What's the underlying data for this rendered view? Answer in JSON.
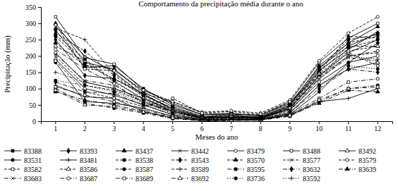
{
  "chart_data": {
    "type": "line",
    "title": "Comportamento da precipitação média durante o ano",
    "x_label": "Meses do ano",
    "y_label": "Precipitação (mm)",
    "categories": [
      "1",
      "2",
      "3",
      "4",
      "5",
      "6",
      "7",
      "8",
      "9",
      "10",
      "11",
      "12"
    ],
    "ylim": [
      0,
      350
    ],
    "yticks": [
      0,
      50,
      100,
      150,
      200,
      250,
      300,
      350
    ],
    "grid": false,
    "legend": "bottom",
    "series": [
      {
        "name": "83388",
        "color": "#000000",
        "marker": "square",
        "line_style": "solid",
        "values": [
          280,
          165,
          170,
          100,
          50,
          20,
          25,
          15,
          55,
          165,
          230,
          270
        ]
      },
      {
        "name": "83393",
        "color": "#000000",
        "marker": "diamond",
        "line_style": "solid",
        "values": [
          250,
          140,
          130,
          85,
          35,
          10,
          12,
          8,
          40,
          140,
          210,
          250
        ]
      },
      {
        "name": "83437",
        "color": "#000000",
        "marker": "triangle",
        "line_style": "solid",
        "values": [
          300,
          180,
          160,
          90,
          45,
          15,
          20,
          12,
          50,
          170,
          240,
          290
        ]
      },
      {
        "name": "83442",
        "color": "#000000",
        "marker": "x",
        "line_style": "solid",
        "values": [
          290,
          200,
          150,
          80,
          40,
          12,
          15,
          10,
          45,
          155,
          220,
          275
        ]
      },
      {
        "name": "83479",
        "color": "#000000",
        "marker": "open-circle",
        "line_style": "solid",
        "values": [
          210,
          120,
          100,
          70,
          30,
          8,
          10,
          8,
          35,
          120,
          180,
          200
        ]
      },
      {
        "name": "83488",
        "color": "#000000",
        "marker": "open-square",
        "line_style": "solid",
        "values": [
          320,
          195,
          175,
          95,
          55,
          20,
          22,
          18,
          60,
          180,
          255,
          300
        ]
      },
      {
        "name": "83492",
        "color": "#000000",
        "marker": "open-triangle",
        "line_style": "solid",
        "values": [
          190,
          100,
          80,
          50,
          20,
          5,
          5,
          5,
          25,
          110,
          160,
          180
        ]
      },
      {
        "name": "83531",
        "color": "#000000",
        "marker": "circle",
        "line_style": "solid",
        "values": [
          180,
          60,
          55,
          40,
          15,
          5,
          3,
          4,
          20,
          90,
          180,
          240
        ]
      },
      {
        "name": "83481",
        "color": "#000000",
        "marker": "plus",
        "line_style": "solid",
        "values": [
          110,
          75,
          70,
          30,
          10,
          2,
          3,
          5,
          20,
          60,
          70,
          100
        ]
      },
      {
        "name": "83538",
        "color": "#000000",
        "marker": "square",
        "line_style": "dashed",
        "values": [
          260,
          175,
          130,
          80,
          40,
          15,
          18,
          12,
          50,
          160,
          250,
          265
        ]
      },
      {
        "name": "83543",
        "color": "#000000",
        "marker": "diamond",
        "line_style": "dashed",
        "values": [
          270,
          215,
          140,
          75,
          30,
          10,
          12,
          10,
          40,
          150,
          260,
          255
        ]
      },
      {
        "name": "83570",
        "color": "#000000",
        "marker": "triangle",
        "line_style": "dashed",
        "values": [
          240,
          170,
          160,
          85,
          60,
          25,
          30,
          20,
          55,
          150,
          230,
          230
        ]
      },
      {
        "name": "83577",
        "color": "#000000",
        "marker": "x",
        "line_style": "dashed",
        "values": [
          200,
          110,
          95,
          60,
          25,
          8,
          8,
          6,
          30,
          130,
          200,
          210
        ]
      },
      {
        "name": "83579",
        "color": "#000000",
        "marker": "open-circle",
        "line_style": "dashed",
        "values": [
          295,
          160,
          155,
          95,
          60,
          28,
          32,
          25,
          65,
          185,
          270,
          320
        ]
      },
      {
        "name": "83582",
        "color": "#000000",
        "marker": "open-square",
        "line_style": "dashed",
        "values": [
          185,
          90,
          70,
          45,
          70,
          25,
          20,
          22,
          60,
          140,
          210,
          170
        ]
      },
      {
        "name": "83586",
        "color": "#000000",
        "marker": "open-triangle",
        "line_style": "dashed",
        "values": [
          230,
          185,
          120,
          70,
          35,
          12,
          15,
          10,
          45,
          145,
          215,
          230
        ]
      },
      {
        "name": "83587",
        "color": "#000000",
        "marker": "circle",
        "line_style": "dashed",
        "values": [
          265,
          190,
          125,
          65,
          30,
          10,
          12,
          10,
          42,
          135,
          225,
          250
        ]
      },
      {
        "name": "83589",
        "color": "#000000",
        "marker": "plus",
        "line_style": "dashed",
        "values": [
          285,
          250,
          145,
          80,
          35,
          12,
          15,
          12,
          48,
          160,
          240,
          260
        ]
      },
      {
        "name": "83595",
        "color": "#000000",
        "marker": "square",
        "line_style": "dash-dot",
        "values": [
          100,
          55,
          40,
          25,
          8,
          1,
          2,
          3,
          15,
          60,
          100,
          110
        ]
      },
      {
        "name": "83632",
        "color": "#000000",
        "marker": "diamond",
        "line_style": "dash-dot",
        "values": [
          120,
          90,
          85,
          50,
          20,
          5,
          6,
          5,
          25,
          100,
          160,
          150
        ]
      },
      {
        "name": "83639",
        "color": "#000000",
        "marker": "triangle",
        "line_style": "dash-dot",
        "values": [
          90,
          65,
          50,
          30,
          12,
          3,
          4,
          5,
          18,
          55,
          95,
          90
        ]
      },
      {
        "name": "83683",
        "color": "#000000",
        "marker": "x",
        "line_style": "dash-dot",
        "values": [
          205,
          125,
          110,
          60,
          30,
          12,
          15,
          10,
          38,
          130,
          195,
          185
        ]
      },
      {
        "name": "83687",
        "color": "#000000",
        "marker": "open-circle",
        "line_style": "dash-dot",
        "values": [
          220,
          160,
          115,
          55,
          30,
          10,
          14,
          8,
          40,
          135,
          200,
          215
        ]
      },
      {
        "name": "83689",
        "color": "#000000",
        "marker": "open-square",
        "line_style": "dash-dot",
        "values": [
          105,
          80,
          60,
          35,
          15,
          4,
          5,
          6,
          22,
          70,
          120,
          130
        ]
      },
      {
        "name": "83692",
        "color": "#000000",
        "marker": "open-triangle",
        "line_style": "dash-dot",
        "values": [
          95,
          50,
          45,
          28,
          10,
          2,
          3,
          4,
          17,
          65,
          100,
          105
        ]
      },
      {
        "name": "83736",
        "color": "#000000",
        "marker": "circle",
        "line_style": "dotted",
        "values": [
          125,
          110,
          90,
          55,
          25,
          6,
          8,
          7,
          28,
          110,
          170,
          160
        ]
      },
      {
        "name": "83592",
        "color": "#000000",
        "marker": "plus",
        "line_style": "dotted",
        "values": [
          150,
          120,
          100,
          60,
          30,
          10,
          12,
          10,
          35,
          140,
          200,
          190
        ]
      }
    ]
  }
}
